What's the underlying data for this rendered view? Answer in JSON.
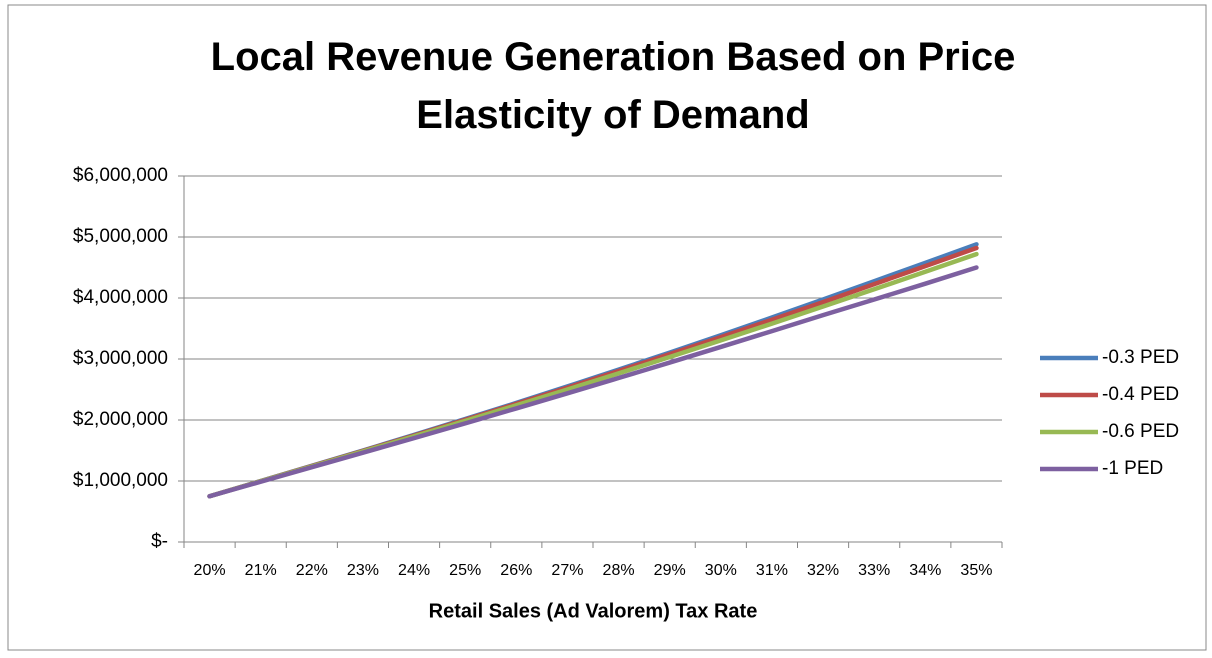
{
  "chart_data": {
    "type": "line",
    "title": "Local Revenue Generation Based on Price Elasticity of Demand",
    "x_label": "Retail Sales (Ad Valorem) Tax Rate",
    "categories": [
      "20%",
      "21%",
      "22%",
      "23%",
      "24%",
      "25%",
      "26%",
      "27%",
      "28%",
      "29%",
      "30%",
      "31%",
      "32%",
      "33%",
      "34%",
      "35%"
    ],
    "series": [
      {
        "name": "-0.3 PED",
        "color": "#4a7ebb",
        "values": [
          750000,
          1000000,
          1250000,
          1500000,
          1755000,
          2015000,
          2280000,
          2550000,
          2825000,
          3105000,
          3390000,
          3680000,
          3975000,
          4275000,
          4575000,
          4880000
        ]
      },
      {
        "name": "-0.4 PED",
        "color": "#be4b48",
        "values": [
          750000,
          998000,
          1246000,
          1494000,
          1746000,
          2003000,
          2265000,
          2531000,
          2803000,
          3079000,
          3359000,
          3644000,
          3933000,
          4227000,
          4523000,
          4820000
        ]
      },
      {
        "name": "-0.6 PED",
        "color": "#98b954",
        "values": [
          750000,
          995000,
          1240000,
          1485000,
          1733000,
          1985000,
          2241000,
          2500000,
          2765000,
          3033000,
          3305000,
          3580000,
          3860000,
          4143000,
          4430000,
          4720000
        ]
      },
      {
        "name": "-1 PED",
        "color": "#7d60a0",
        "values": [
          750000,
          988000,
          1226000,
          1464000,
          1703000,
          1945000,
          2190000,
          2437000,
          2688000,
          2942000,
          3198000,
          3457000,
          3719000,
          3975000,
          4235000,
          4500000
        ]
      }
    ],
    "ylim": [
      0,
      6000000
    ],
    "yticks": [
      {
        "value": 0,
        "label": "$-"
      },
      {
        "value": 1000000,
        "label": "$1,000,000"
      },
      {
        "value": 2000000,
        "label": "$2,000,000"
      },
      {
        "value": 3000000,
        "label": "$3,000,000"
      },
      {
        "value": 4000000,
        "label": "$4,000,000"
      },
      {
        "value": 5000000,
        "label": "$5,000,000"
      },
      {
        "value": 6000000,
        "label": "$6,000,000"
      }
    ],
    "grid": true,
    "legend": "right"
  }
}
